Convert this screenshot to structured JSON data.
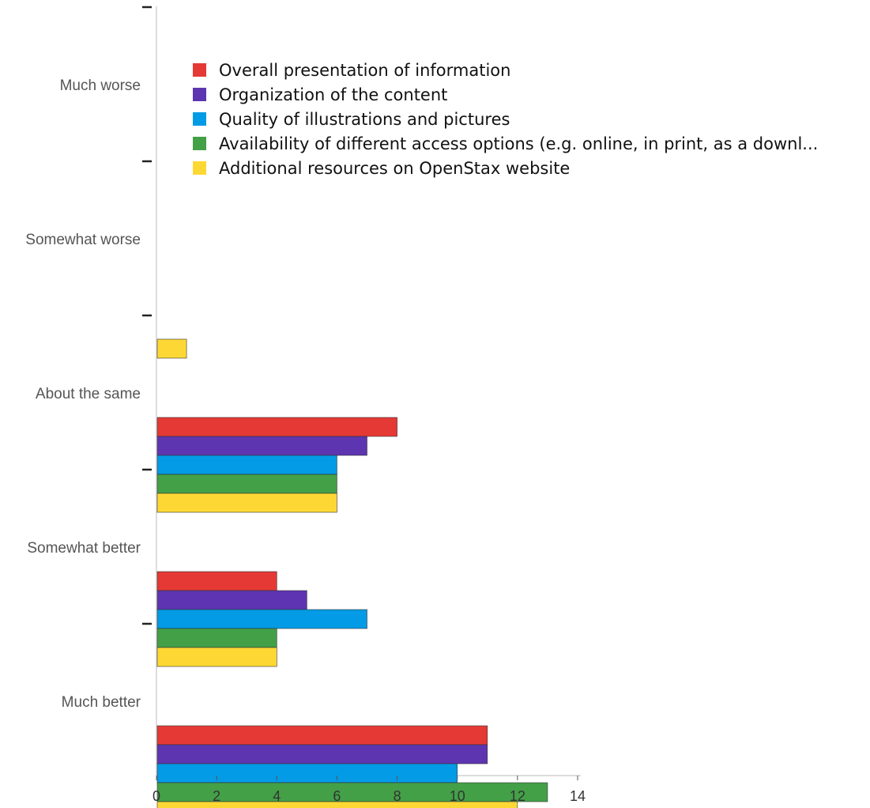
{
  "chart_data": {
    "type": "bar",
    "orientation": "horizontal",
    "title": "",
    "xlabel": "",
    "ylabel": "",
    "xlim": [
      0,
      14
    ],
    "x_ticks": [
      "0",
      "2",
      "4",
      "6",
      "8",
      "10",
      "12",
      "14"
    ],
    "grid": false,
    "legend_position": "top-left",
    "categories": [
      "Much worse",
      "Somewhat worse",
      "About the same",
      "Somewhat better",
      "Much better"
    ],
    "series": [
      {
        "name": "Overall presentation of information",
        "color": "#e53935",
        "values": [
          0,
          0,
          8,
          4,
          11
        ]
      },
      {
        "name": "Organization of the content",
        "color": "#5e35b1",
        "values": [
          0,
          0,
          7,
          5,
          11
        ]
      },
      {
        "name": "Quality of illustrations and pictures",
        "color": "#039be5",
        "values": [
          0,
          0,
          6,
          7,
          10
        ]
      },
      {
        "name": "Availability of different access options (e.g. online, in print, as a downl...",
        "color": "#43a047",
        "values": [
          0,
          0,
          6,
          4,
          13
        ]
      },
      {
        "name": "Additional resources on OpenStax website",
        "color": "#fdd835",
        "values": [
          0,
          1,
          6,
          4,
          12
        ]
      }
    ]
  }
}
